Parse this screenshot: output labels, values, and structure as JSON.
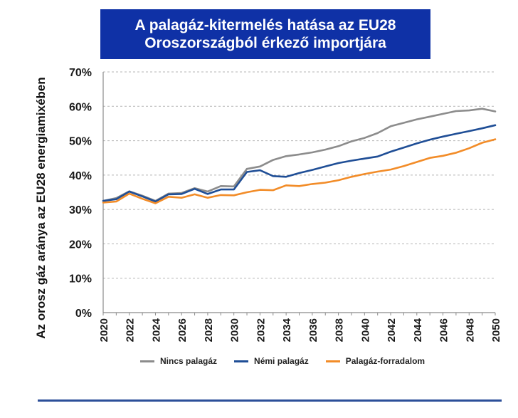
{
  "title": {
    "line1": "A palagáz-kitermelés hatása az EU28",
    "line2": "Oroszországból érkező importjára"
  },
  "chart_data": {
    "type": "line",
    "ylabel": "Az orosz gáz aránya az EU28 energiamixében",
    "xlabel": "",
    "ylim": [
      0,
      70
    ],
    "xlim": [
      2020,
      2050
    ],
    "y_ticks": [
      0,
      10,
      20,
      30,
      40,
      50,
      60,
      70
    ],
    "y_tick_labels": [
      "0%",
      "10%",
      "20%",
      "30%",
      "40%",
      "50%",
      "60%",
      "70%"
    ],
    "x_ticks": [
      2020,
      2022,
      2024,
      2026,
      2028,
      2030,
      2032,
      2034,
      2036,
      2038,
      2040,
      2042,
      2044,
      2046,
      2048,
      2050
    ],
    "x_tick_labels": [
      "2020",
      "2022",
      "2024",
      "2026",
      "2028",
      "2030",
      "2032",
      "2034",
      "2036",
      "2038",
      "2040",
      "2042",
      "2044",
      "2046",
      "2048",
      "2050"
    ],
    "grid": "horizontal-dashed",
    "legend_position": "bottom",
    "x": [
      2020,
      2021,
      2022,
      2023,
      2024,
      2025,
      2026,
      2027,
      2028,
      2029,
      2030,
      2031,
      2032,
      2033,
      2034,
      2035,
      2036,
      2037,
      2038,
      2039,
      2040,
      2041,
      2042,
      2043,
      2044,
      2045,
      2046,
      2047,
      2048,
      2049,
      2050
    ],
    "series": [
      {
        "name": "Nincs palagáz",
        "color": "#8c8c8c",
        "values": [
          32.5,
          33.3,
          35.3,
          34.0,
          32.5,
          34.6,
          34.8,
          36.2,
          35.2,
          36.8,
          36.7,
          41.8,
          42.5,
          44.4,
          45.5,
          46.0,
          46.6,
          47.4,
          48.4,
          49.8,
          50.8,
          52.2,
          54.2,
          55.2,
          56.2,
          57.0,
          57.8,
          58.6,
          58.8,
          59.3,
          58.5
        ]
      },
      {
        "name": "Némi palagáz",
        "color": "#1f4e96",
        "values": [
          32.5,
          33.0,
          35.2,
          33.8,
          32.3,
          34.4,
          34.5,
          36.0,
          34.5,
          35.8,
          35.8,
          40.9,
          41.4,
          39.7,
          39.5,
          40.6,
          41.5,
          42.5,
          43.5,
          44.2,
          44.8,
          45.4,
          46.8,
          48.0,
          49.2,
          50.3,
          51.2,
          52.0,
          52.8,
          53.6,
          54.5
        ]
      },
      {
        "name": "Palagáz-forradalom",
        "color": "#f28c28",
        "values": [
          32.0,
          32.3,
          34.6,
          33.1,
          31.8,
          33.7,
          33.4,
          34.4,
          33.4,
          34.2,
          34.1,
          35.0,
          35.7,
          35.6,
          37.0,
          36.8,
          37.4,
          37.8,
          38.5,
          39.5,
          40.3,
          41.0,
          41.6,
          42.6,
          43.8,
          45.0,
          45.6,
          46.5,
          47.8,
          49.4,
          50.4
        ]
      }
    ]
  }
}
